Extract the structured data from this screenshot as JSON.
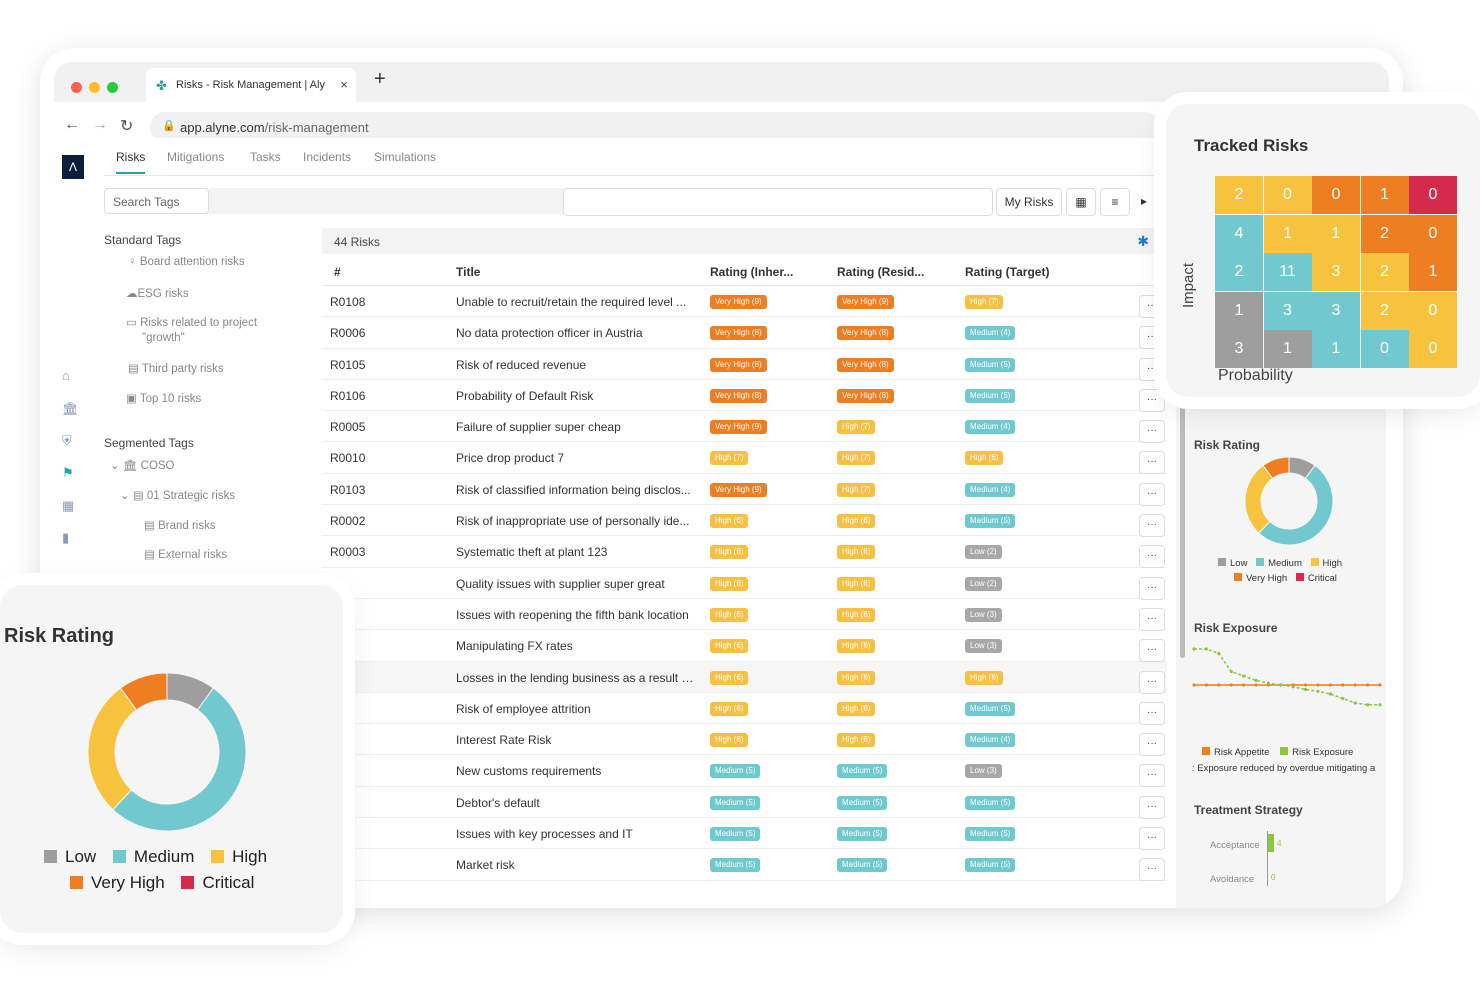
{
  "browser": {
    "tab_title": "Risks - Risk Management | Aly",
    "url_host": "app.alyne.com",
    "url_path": "/risk-management"
  },
  "app": {
    "logo_text": "Λ",
    "tabs": [
      "Risks",
      "Mitigations",
      "Tasks",
      "Incidents",
      "Simulations"
    ],
    "search_tags_placeholder": "Search Tags",
    "my_risks_label": "My Risks"
  },
  "sidebar": {
    "standard_heading": "Standard Tags",
    "standard_items": [
      "Board attention risks",
      "ESG risks",
      "Risks related to project",
      "\"growth\"",
      "Third party risks",
      "Top 10 risks"
    ],
    "segmented_heading": "Segmented Tags",
    "segmented_items": [
      "COSO",
      "01 Strategic risks",
      "Brand risks",
      "External risks"
    ]
  },
  "table": {
    "count_label": "44 Risks",
    "columns": [
      "#",
      "Title",
      "Rating (Inher...",
      "Rating (Resid...",
      "Rating (Target)"
    ],
    "rows": [
      {
        "id": "R0108",
        "title": "Unable to recruit/retain the required level ...",
        "inh": "Very High (9)",
        "inh_c": "vh",
        "res": "Very High (9)",
        "res_c": "vh",
        "tgt": "High (7)",
        "tgt_c": "h"
      },
      {
        "id": "R0006",
        "title": "No data protection officer in Austria",
        "inh": "Very High (8)",
        "inh_c": "vh",
        "res": "Very High (8)",
        "res_c": "vh",
        "tgt": "Medium (4)",
        "tgt_c": "m"
      },
      {
        "id": "R0105",
        "title": "Risk of reduced revenue",
        "inh": "Very High (8)",
        "inh_c": "vh",
        "res": "Very High (8)",
        "res_c": "vh",
        "tgt": "Medium (5)",
        "tgt_c": "m"
      },
      {
        "id": "R0106",
        "title": "Probability of Default Risk",
        "inh": "Very High (8)",
        "inh_c": "vh",
        "res": "Very High (8)",
        "res_c": "vh",
        "tgt": "Medium (5)",
        "tgt_c": "m"
      },
      {
        "id": "R0005",
        "title": "Failure of supplier super cheap",
        "inh": "Very High (9)",
        "inh_c": "vh",
        "res": "High (7)",
        "res_c": "h",
        "tgt": "Medium (4)",
        "tgt_c": "m"
      },
      {
        "id": "R0010",
        "title": "Price drop product 7",
        "inh": "High (7)",
        "inh_c": "h",
        "res": "High (7)",
        "res_c": "h",
        "tgt": "High (6)",
        "tgt_c": "h"
      },
      {
        "id": "R0103",
        "title": "Risk of classified information being disclos...",
        "inh": "Very High (9)",
        "inh_c": "vh",
        "res": "High (7)",
        "res_c": "h",
        "tgt": "Medium (4)",
        "tgt_c": "m"
      },
      {
        "id": "R0002",
        "title": "Risk of inappropriate use of personally ide...",
        "inh": "High (6)",
        "inh_c": "h",
        "res": "High (6)",
        "res_c": "h",
        "tgt": "Medium (5)",
        "tgt_c": "m"
      },
      {
        "id": "R0003",
        "title": "Systematic theft at plant 123",
        "inh": "High (6)",
        "inh_c": "h",
        "res": "High (6)",
        "res_c": "h",
        "tgt": "Low (2)",
        "tgt_c": "l"
      },
      {
        "id": "",
        "title": "Quality issues with supplier super great",
        "inh": "High (6)",
        "inh_c": "h",
        "res": "High (6)",
        "res_c": "h",
        "tgt": "Low (2)",
        "tgt_c": "l"
      },
      {
        "id": "",
        "title": "Issues with reopening the fifth bank location",
        "inh": "High (6)",
        "inh_c": "h",
        "res": "High (6)",
        "res_c": "h",
        "tgt": "Low (3)",
        "tgt_c": "l"
      },
      {
        "id": "",
        "title": "Manipulating FX rates",
        "inh": "High (6)",
        "inh_c": "h",
        "res": "High (6)",
        "res_c": "h",
        "tgt": "Low (3)",
        "tgt_c": "l"
      },
      {
        "id": "",
        "title": "Losses in the lending business as a result o...",
        "inh": "High (6)",
        "inh_c": "h",
        "res": "High (6)",
        "res_c": "h",
        "tgt": "High (6)",
        "tgt_c": "h"
      },
      {
        "id": "",
        "title": "Risk of employee attrition",
        "inh": "High (6)",
        "inh_c": "h",
        "res": "High (6)",
        "res_c": "h",
        "tgt": "Medium (5)",
        "tgt_c": "m"
      },
      {
        "id": "",
        "title": "Interest Rate Risk",
        "inh": "High (6)",
        "inh_c": "h",
        "res": "High (6)",
        "res_c": "h",
        "tgt": "Medium (4)",
        "tgt_c": "m"
      },
      {
        "id": "",
        "title": "New customs requirements",
        "inh": "Medium (5)",
        "inh_c": "m",
        "res": "Medium (5)",
        "res_c": "m",
        "tgt": "Low (3)",
        "tgt_c": "l"
      },
      {
        "id": "",
        "title": "Debtor's default",
        "inh": "Medium (5)",
        "inh_c": "m",
        "res": "Medium (5)",
        "res_c": "m",
        "tgt": "Medium (5)",
        "tgt_c": "m"
      },
      {
        "id": "",
        "title": "Issues with key processes and IT",
        "inh": "Medium (5)",
        "inh_c": "m",
        "res": "Medium (5)",
        "res_c": "m",
        "tgt": "Medium (5)",
        "tgt_c": "m"
      },
      {
        "id": "",
        "title": "Market risk",
        "inh": "Medium (5)",
        "inh_c": "m",
        "res": "Medium (5)",
        "res_c": "m",
        "tgt": "Medium (5)",
        "tgt_c": "m"
      }
    ],
    "more_label": "···"
  },
  "right_panel": {
    "risk_rating_title": "Risk Rating",
    "risk_exposure_title": "Risk Exposure",
    "exposure_legend": [
      "Risk Appetite",
      "Risk Exposure"
    ],
    "exposure_note": ": Exposure reduced by overdue mitigating a",
    "treatment_title": "Treatment Strategy",
    "treatment_labels": [
      "Acceptance",
      "Avoidance"
    ],
    "treatment_values": [
      "4",
      "0"
    ]
  },
  "tracked_risks": {
    "title": "Tracked Risks",
    "y_label": "Impact",
    "x_label": "Probability",
    "grid": [
      [
        2,
        0,
        0,
        1,
        0
      ],
      [
        4,
        1,
        1,
        2,
        0
      ],
      [
        2,
        11,
        3,
        2,
        1
      ],
      [
        1,
        3,
        3,
        2,
        0
      ],
      [
        3,
        1,
        1,
        0,
        0
      ]
    ],
    "grid_colors": [
      [
        "h",
        "h",
        "vh",
        "vh",
        "c"
      ],
      [
        "m",
        "h",
        "h",
        "vh",
        "vh"
      ],
      [
        "m",
        "m",
        "h",
        "h",
        "vh"
      ],
      [
        "l",
        "m",
        "m",
        "h",
        "h"
      ],
      [
        "l",
        "l",
        "m",
        "m",
        "h"
      ]
    ]
  },
  "risk_rating_card": {
    "title": "Risk Rating",
    "legend": [
      "Low",
      "Medium",
      "High",
      "Very High",
      "Critical"
    ]
  },
  "colors": {
    "low": "#9e9e9e",
    "medium": "#72c8cf",
    "high": "#f7c33f",
    "very_high": "#ef7d22",
    "critical": "#d52a4c"
  },
  "chart_data": [
    {
      "type": "pie",
      "title": "Risk Rating",
      "categories": [
        "Low",
        "Medium",
        "High",
        "Very High",
        "Critical"
      ],
      "values": [
        10,
        52,
        28,
        10,
        0
      ]
    },
    {
      "type": "line",
      "title": "Risk Exposure",
      "series": [
        {
          "name": "Risk Appetite",
          "values": [
            5,
            5,
            5,
            5,
            5,
            5,
            5,
            5,
            5,
            5,
            5,
            5,
            5,
            5,
            5,
            5
          ]
        },
        {
          "name": "Risk Exposure",
          "values": [
            9,
            9,
            8.5,
            6.5,
            6,
            5.5,
            5.2,
            5,
            4.8,
            4.5,
            4.3,
            4,
            3.5,
            3,
            2.8,
            2.8
          ]
        }
      ]
    }
  ]
}
